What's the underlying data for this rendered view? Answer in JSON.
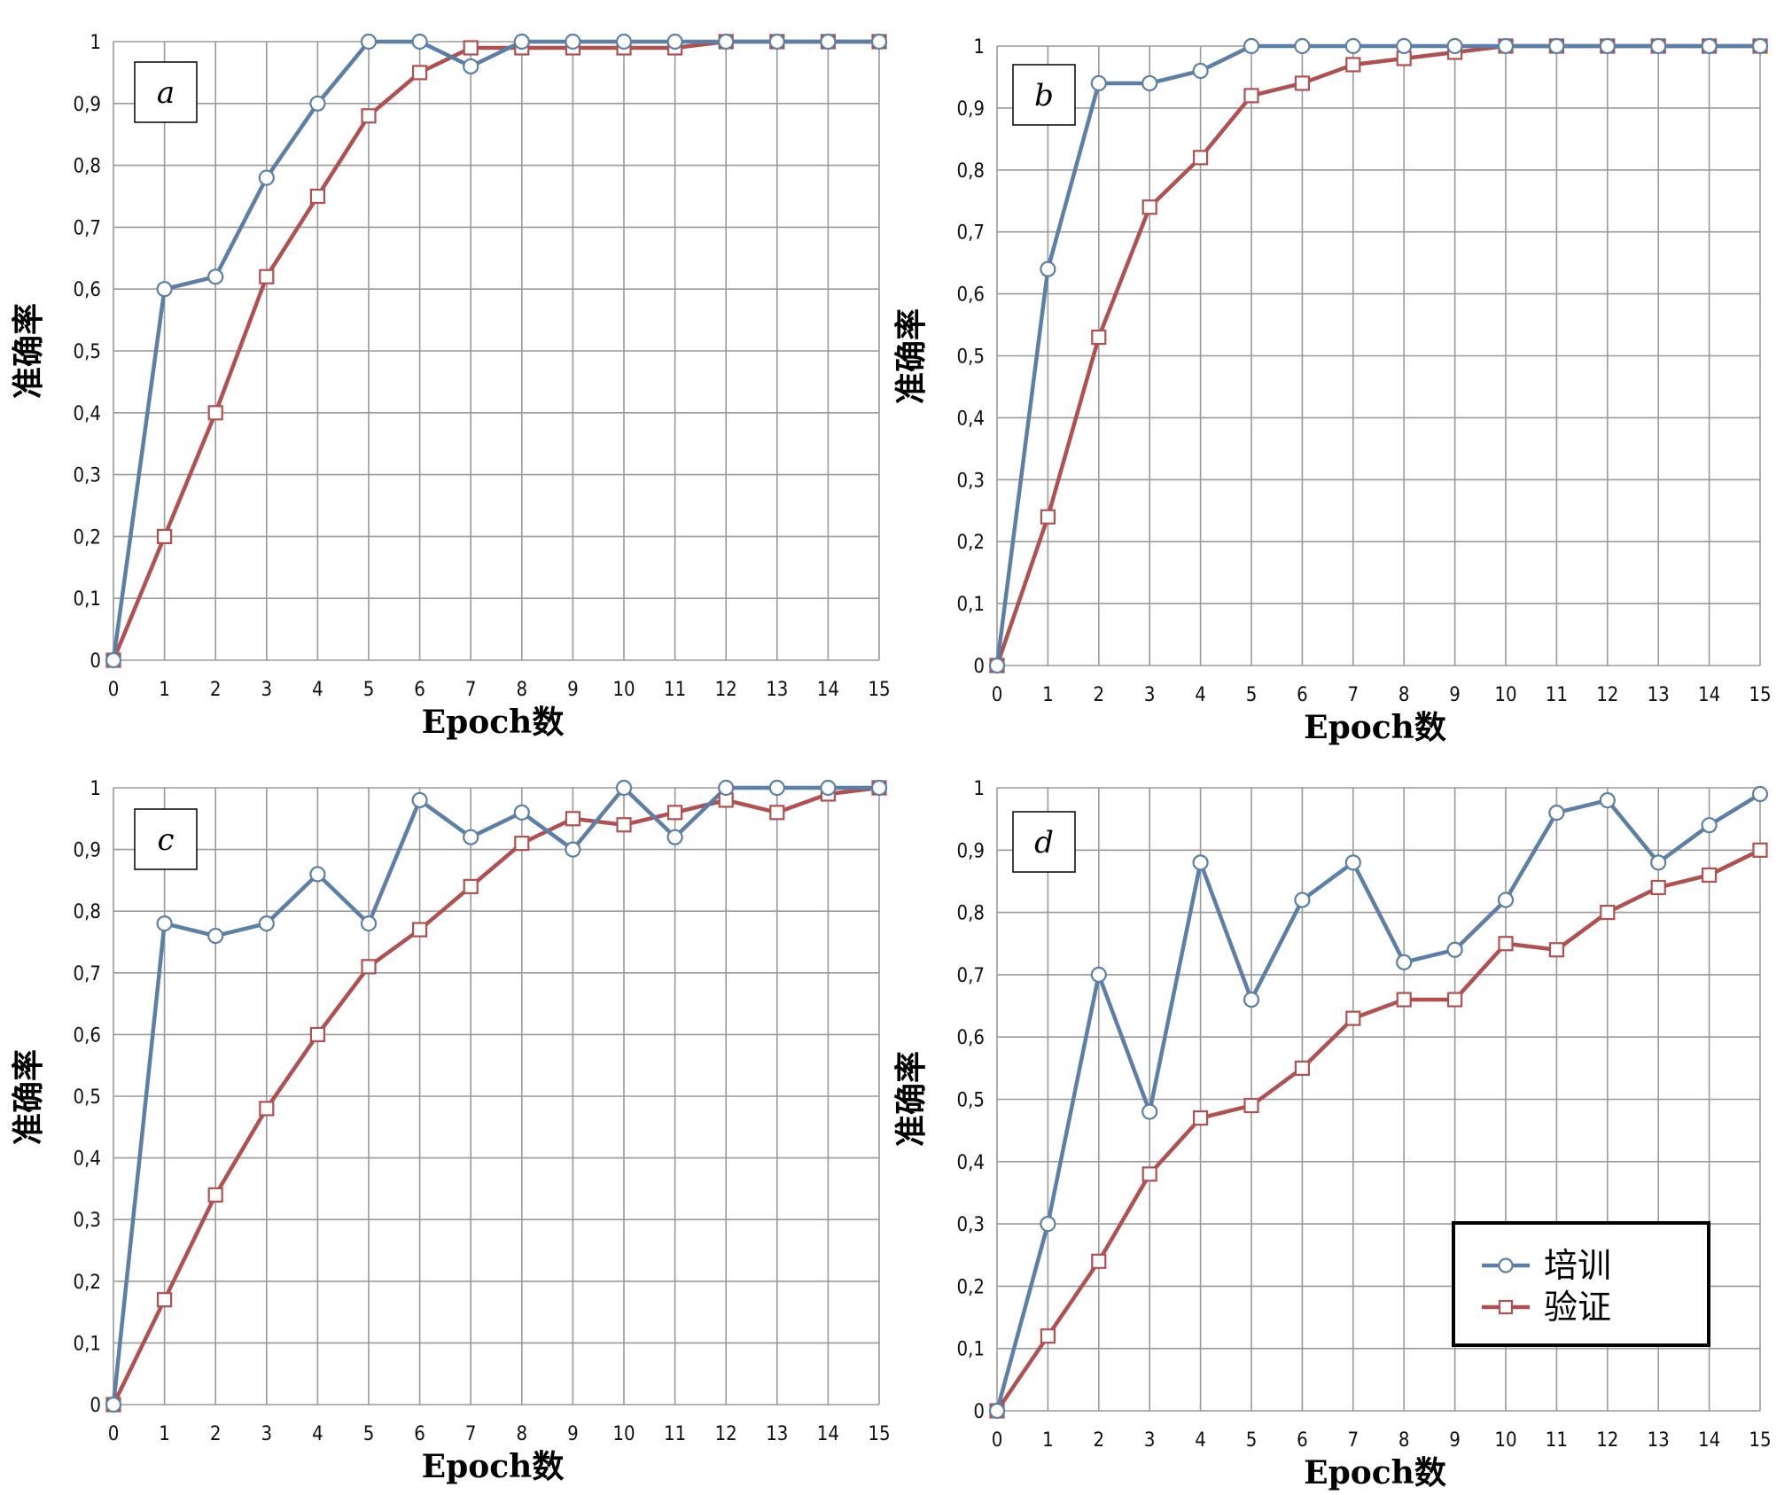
{
  "colors": {
    "train": "#5b7fa6",
    "val": "#b05050",
    "grid": "#9a9a9a"
  },
  "legend": {
    "train": "培训",
    "val": "验证",
    "placement": "bottom-right of panel d"
  },
  "chart_data": [
    {
      "type": "line",
      "panel_label": "a",
      "xlabel": "Epoch数",
      "ylabel": "准确率",
      "xlim": [
        0,
        15
      ],
      "ylim": [
        0,
        1
      ],
      "grid": true,
      "x": [
        0,
        1,
        2,
        3,
        4,
        5,
        6,
        7,
        8,
        9,
        10,
        11,
        12,
        13,
        14,
        15
      ],
      "x_tick_labels": [
        "0",
        "1",
        "2",
        "3",
        "4",
        "5",
        "6",
        "7",
        "8",
        "9",
        "10",
        "11",
        "12",
        "13",
        "14",
        "15"
      ],
      "y_tick_labels": [
        "0",
        "0,1",
        "0,2",
        "0,3",
        "0,4",
        "0,5",
        "0,6",
        "0,7",
        "0,8",
        "0,9",
        "1"
      ],
      "series": [
        {
          "name": "培训",
          "values": [
            0,
            0.6,
            0.62,
            0.78,
            0.9,
            1.0,
            1.0,
            0.96,
            1.0,
            1.0,
            1.0,
            1.0,
            1.0,
            1.0,
            1.0,
            1.0
          ]
        },
        {
          "name": "验证",
          "values": [
            0,
            0.2,
            0.4,
            0.62,
            0.75,
            0.88,
            0.95,
            0.99,
            0.99,
            0.99,
            0.99,
            0.99,
            1.0,
            1.0,
            1.0,
            1.0
          ]
        }
      ]
    },
    {
      "type": "line",
      "panel_label": "b",
      "xlabel": "Epoch数",
      "ylabel": "准确率",
      "xlim": [
        0,
        15
      ],
      "ylim": [
        0,
        1
      ],
      "grid": true,
      "x": [
        0,
        1,
        2,
        3,
        4,
        5,
        6,
        7,
        8,
        9,
        10,
        11,
        12,
        13,
        14,
        15
      ],
      "x_tick_labels": [
        "0",
        "1",
        "2",
        "3",
        "4",
        "5",
        "6",
        "7",
        "8",
        "9",
        "10",
        "11",
        "12",
        "13",
        "14",
        "15"
      ],
      "y_tick_labels": [
        "0",
        "0,1",
        "0,2",
        "0,3",
        "0,4",
        "0,5",
        "0,6",
        "0,7",
        "0,8",
        "0,9",
        "1"
      ],
      "series": [
        {
          "name": "培训",
          "values": [
            0,
            0.64,
            0.94,
            0.94,
            0.96,
            1.0,
            1.0,
            1.0,
            1.0,
            1.0,
            1.0,
            1.0,
            1.0,
            1.0,
            1.0,
            1.0
          ]
        },
        {
          "name": "验证",
          "values": [
            0,
            0.24,
            0.53,
            0.74,
            0.82,
            0.92,
            0.94,
            0.97,
            0.98,
            0.99,
            1.0,
            1.0,
            1.0,
            1.0,
            1.0,
            1.0
          ]
        }
      ]
    },
    {
      "type": "line",
      "panel_label": "c",
      "xlabel": "Epoch数",
      "ylabel": "准确率",
      "xlim": [
        0,
        15
      ],
      "ylim": [
        0,
        1
      ],
      "grid": true,
      "x": [
        0,
        1,
        2,
        3,
        4,
        5,
        6,
        7,
        8,
        9,
        10,
        11,
        12,
        13,
        14,
        15
      ],
      "x_tick_labels": [
        "0",
        "1",
        "2",
        "3",
        "4",
        "5",
        "6",
        "7",
        "8",
        "9",
        "10",
        "11",
        "12",
        "13",
        "14",
        "15"
      ],
      "y_tick_labels": [
        "0",
        "0,1",
        "0,2",
        "0,3",
        "0,4",
        "0,5",
        "0,6",
        "0,7",
        "0,8",
        "0,9",
        "1"
      ],
      "series": [
        {
          "name": "培训",
          "values": [
            0,
            0.78,
            0.76,
            0.78,
            0.86,
            0.78,
            0.98,
            0.92,
            0.96,
            0.9,
            1.0,
            0.92,
            1.0,
            1.0,
            1.0,
            1.0
          ]
        },
        {
          "name": "验证",
          "values": [
            0,
            0.17,
            0.34,
            0.48,
            0.6,
            0.71,
            0.77,
            0.84,
            0.91,
            0.95,
            0.94,
            0.96,
            0.98,
            0.96,
            0.99,
            1.0
          ]
        }
      ]
    },
    {
      "type": "line",
      "panel_label": "d",
      "xlabel": "Epoch数",
      "ylabel": "准确率",
      "xlim": [
        0,
        15
      ],
      "ylim": [
        0,
        1
      ],
      "grid": true,
      "x": [
        0,
        1,
        2,
        3,
        4,
        5,
        6,
        7,
        8,
        9,
        10,
        11,
        12,
        13,
        14,
        15
      ],
      "x_tick_labels": [
        "0",
        "1",
        "2",
        "3",
        "4",
        "5",
        "6",
        "7",
        "8",
        "9",
        "10",
        "11",
        "12",
        "13",
        "14",
        "15"
      ],
      "y_tick_labels": [
        "0",
        "0,1",
        "0,2",
        "0,3",
        "0,4",
        "0,5",
        "0,6",
        "0,7",
        "0,8",
        "0,9",
        "1"
      ],
      "series": [
        {
          "name": "培训",
          "values": [
            0,
            0.3,
            0.7,
            0.48,
            0.88,
            0.66,
            0.82,
            0.88,
            0.72,
            0.74,
            0.82,
            0.96,
            0.98,
            0.88,
            0.94,
            0.99
          ]
        },
        {
          "name": "验证",
          "values": [
            0,
            0.12,
            0.24,
            0.38,
            0.47,
            0.49,
            0.55,
            0.63,
            0.66,
            0.66,
            0.75,
            0.74,
            0.8,
            0.84,
            0.86,
            0.9
          ]
        }
      ]
    }
  ]
}
